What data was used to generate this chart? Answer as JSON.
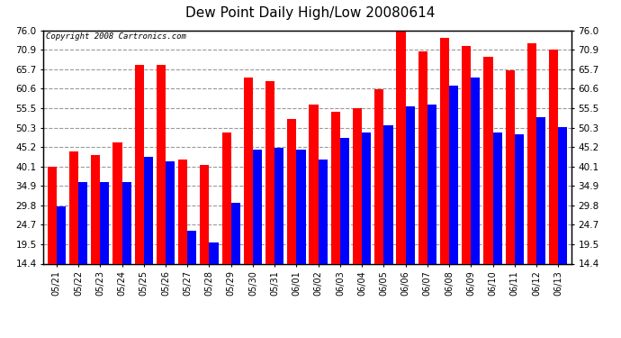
{
  "title": "Dew Point Daily High/Low 20080614",
  "copyright": "Copyright 2008 Cartronics.com",
  "categories": [
    "05/21",
    "05/22",
    "05/23",
    "05/24",
    "05/25",
    "05/26",
    "05/27",
    "05/28",
    "05/29",
    "05/30",
    "05/31",
    "06/01",
    "06/02",
    "06/03",
    "06/04",
    "06/05",
    "06/06",
    "06/07",
    "06/08",
    "06/09",
    "06/10",
    "06/11",
    "06/12",
    "06/13"
  ],
  "highs": [
    40.1,
    44.0,
    43.0,
    46.5,
    67.0,
    67.0,
    42.0,
    40.5,
    49.0,
    63.5,
    62.5,
    52.5,
    56.5,
    54.5,
    55.5,
    60.5,
    76.0,
    70.5,
    74.0,
    72.0,
    69.0,
    65.5,
    72.5,
    70.9
  ],
  "lows": [
    29.5,
    36.0,
    36.0,
    36.0,
    42.5,
    41.5,
    23.0,
    20.0,
    30.5,
    44.5,
    45.0,
    44.5,
    42.0,
    47.5,
    49.0,
    51.0,
    56.0,
    56.5,
    61.5,
    63.5,
    49.0,
    48.5,
    53.0,
    50.5
  ],
  "high_color": "#ff0000",
  "low_color": "#0000ff",
  "bg_color": "#ffffff",
  "plot_bg_color": "#ffffff",
  "grid_color": "#aaaaaa",
  "yticks": [
    14.4,
    19.5,
    24.7,
    29.8,
    34.9,
    40.1,
    45.2,
    50.3,
    55.5,
    60.6,
    65.7,
    70.9,
    76.0
  ],
  "ymin": 14.4,
  "ymax": 76.0,
  "bar_width": 0.42,
  "title_fontsize": 11,
  "tick_fontsize": 7.5,
  "copyright_fontsize": 6.5
}
